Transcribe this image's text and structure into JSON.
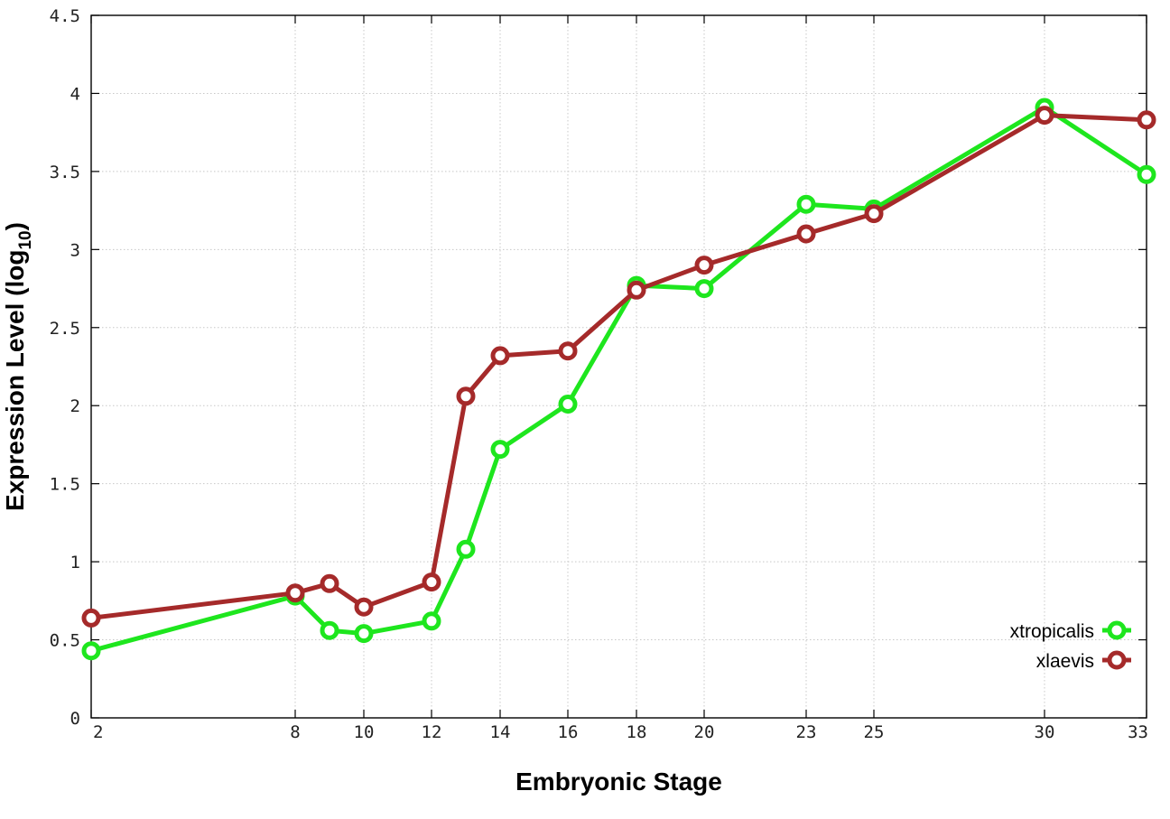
{
  "chart_data": {
    "type": "line",
    "title": "",
    "xlabel": "Embryonic Stage",
    "ylabel_main": "Expression Level (log",
    "ylabel_sub": "10",
    "ylabel_close": ")",
    "xlim": [
      2,
      33
    ],
    "ylim": [
      0,
      4.5
    ],
    "x_scale": "ordinal-like (nonuniform spacing between stages)",
    "grid": true,
    "legend_position": "bottom-right",
    "x_ticks": [
      "2",
      "8",
      "10",
      "12",
      "14",
      "16",
      "18",
      "20",
      "23",
      "25",
      "30",
      "33"
    ],
    "y_ticks": [
      "0",
      "0.5",
      "1",
      "1.5",
      "2",
      "2.5",
      "3",
      "3.5",
      "4",
      "4.5"
    ],
    "x_stages": [
      2,
      8,
      9,
      10,
      12,
      13,
      14,
      16,
      18,
      20,
      23,
      25,
      30,
      33
    ],
    "series": [
      {
        "name": "xtropicalis",
        "color": "#1ee61e",
        "marker": "open-circle",
        "values": [
          0.43,
          0.78,
          0.56,
          0.54,
          0.62,
          1.08,
          1.72,
          2.01,
          2.77,
          2.75,
          3.29,
          3.26,
          3.91,
          3.48
        ]
      },
      {
        "name": "xlaevis",
        "color": "#a52a2a",
        "marker": "open-circle",
        "values": [
          0.64,
          0.8,
          0.86,
          0.71,
          0.87,
          2.06,
          2.32,
          2.35,
          2.74,
          2.9,
          3.1,
          3.23,
          3.86,
          3.83
        ]
      }
    ]
  }
}
